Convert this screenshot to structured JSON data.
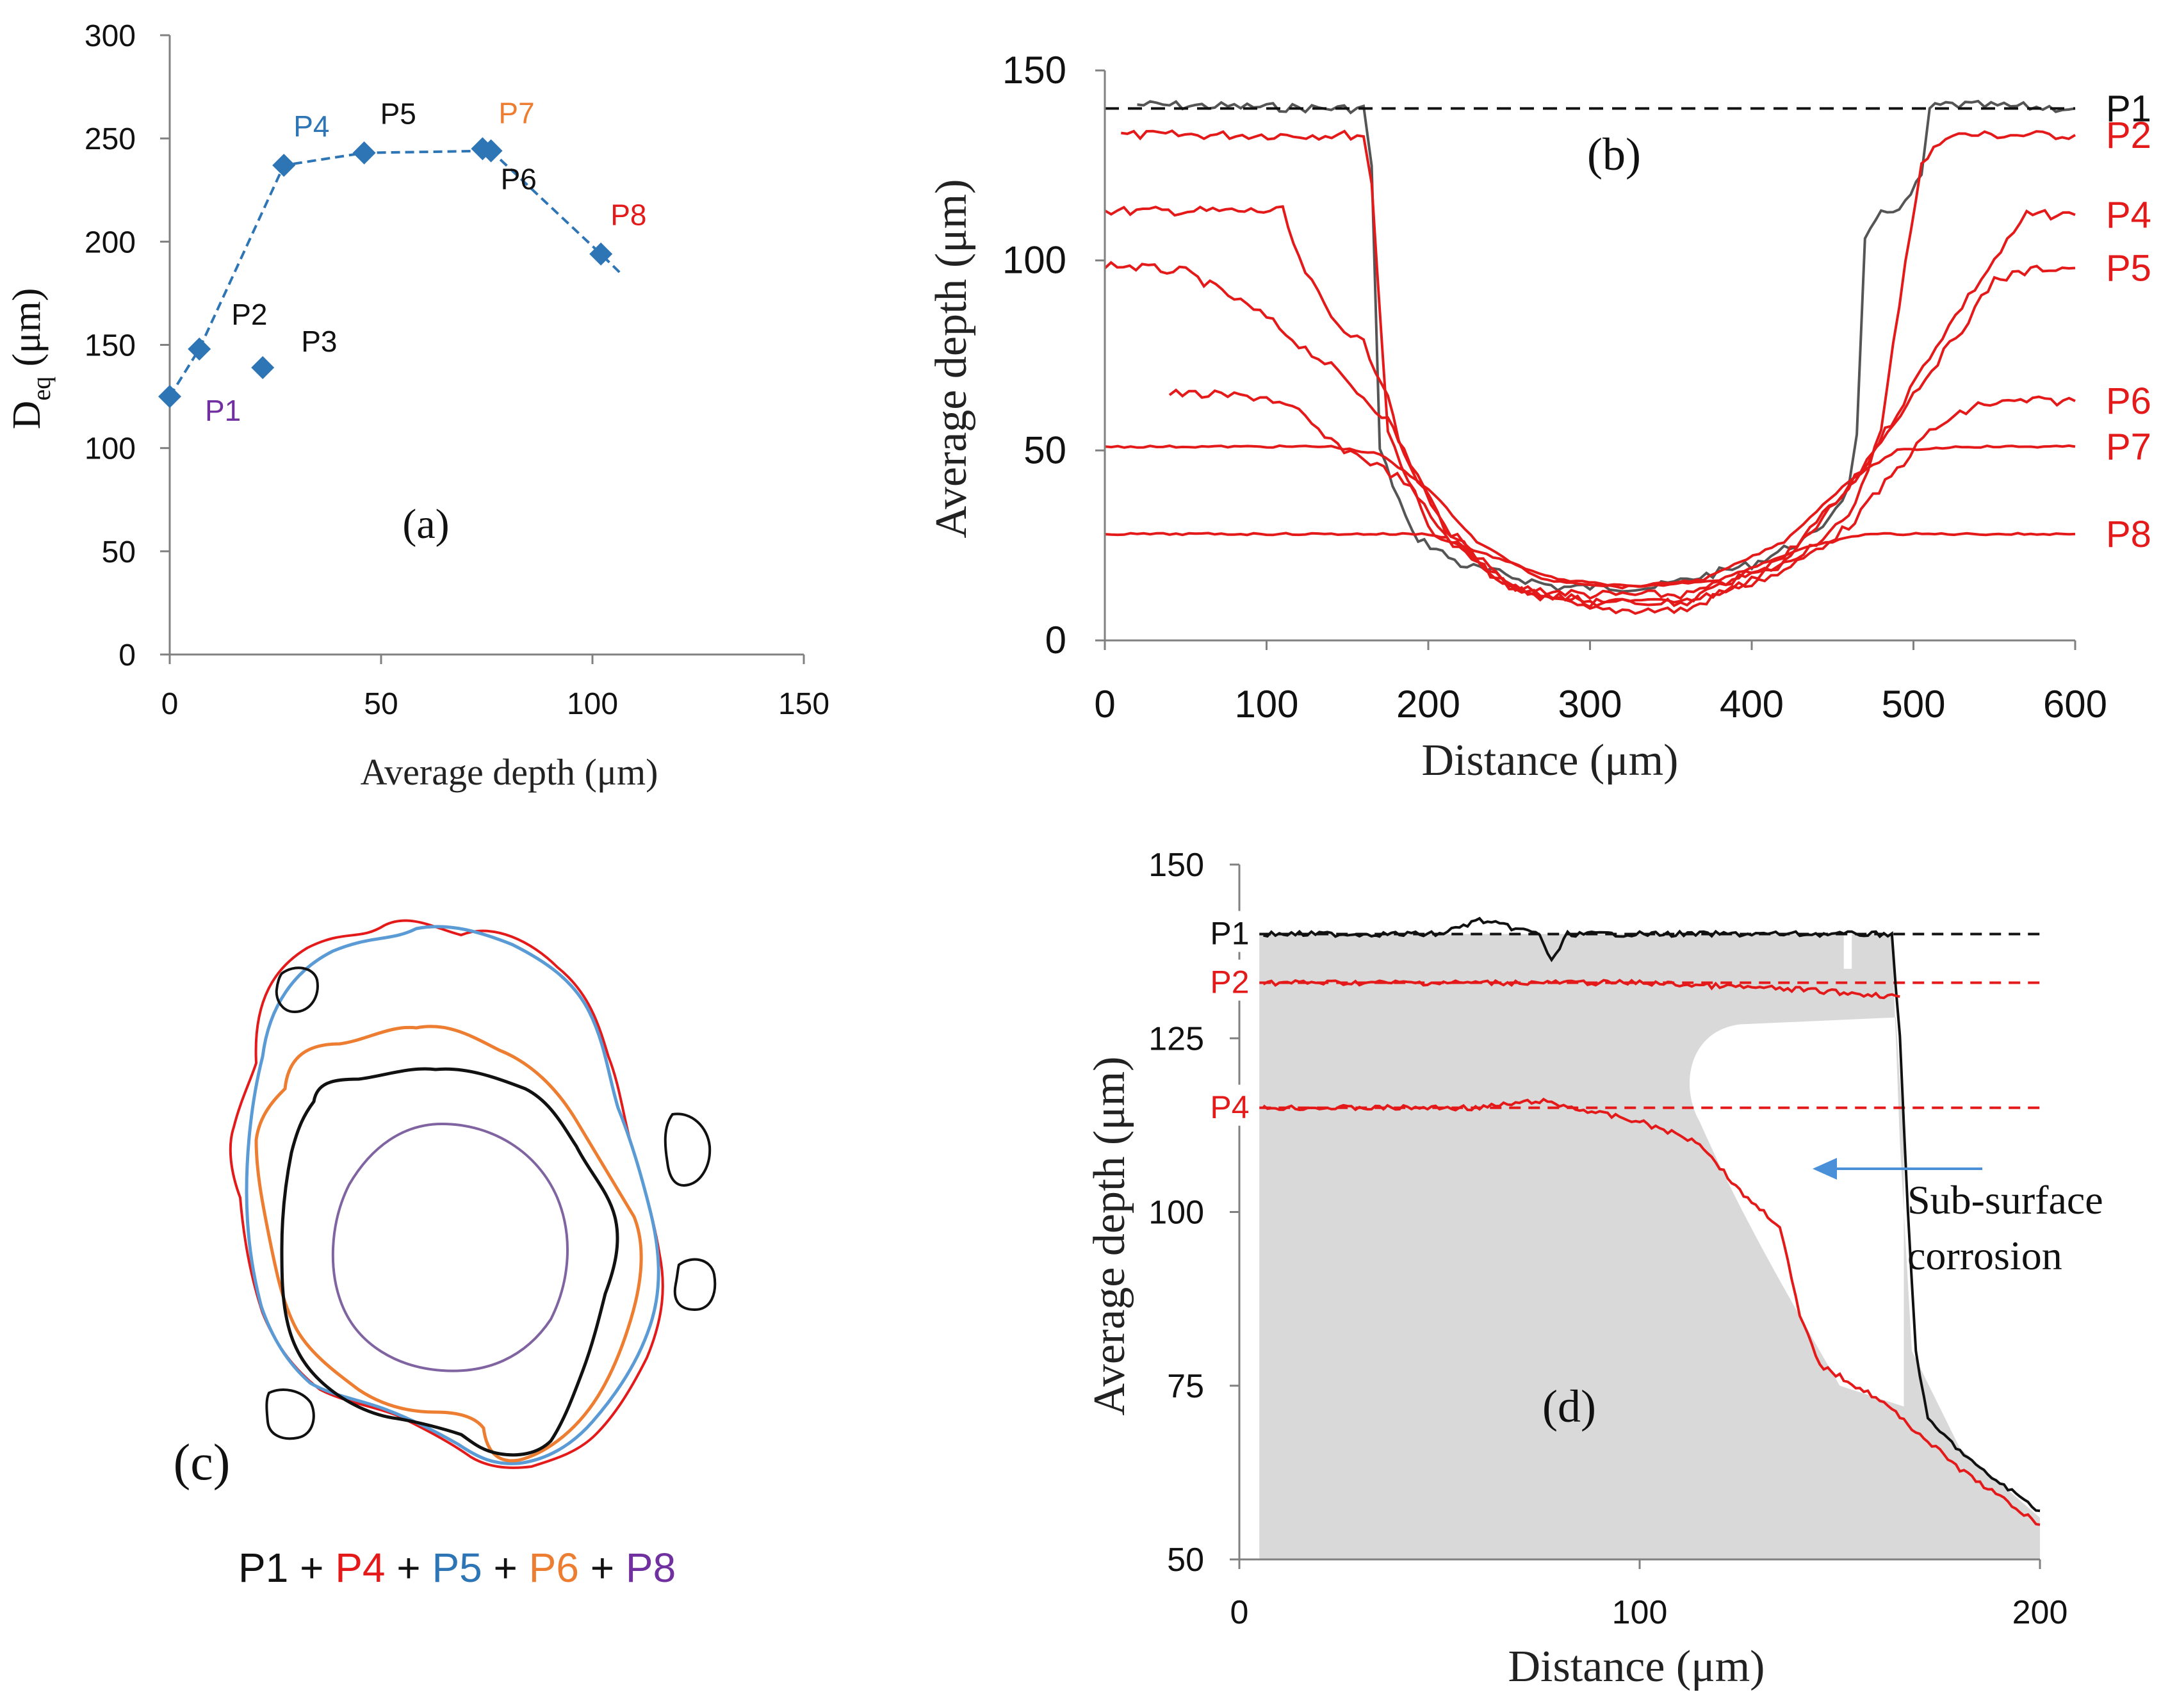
{
  "colors": {
    "blue": "#2e75b6",
    "black": "#111111",
    "red": "#e41a1a",
    "orange": "#ed7d31",
    "purple": "#7030a0",
    "grey_fill": "#d9d9d9",
    "axis": "#808080",
    "arrow": "#4a90d9"
  },
  "chart_data": [
    {
      "id": "a",
      "type": "scatter",
      "panel_label": "(a)",
      "title": "",
      "xlabel": "Average depth (μm)",
      "ylabel_main": "D",
      "ylabel_sub": "eq",
      "ylabel_rest": " (μm)",
      "xlim": [
        0,
        150
      ],
      "ylim": [
        0,
        300
      ],
      "xticks": [
        0,
        50,
        100,
        150
      ],
      "yticks": [
        0,
        50,
        100,
        150,
        200,
        250,
        300
      ],
      "points": [
        {
          "label": "P1",
          "x": 0,
          "y": 125,
          "label_color": "purple"
        },
        {
          "label": "P2",
          "x": 7,
          "y": 148,
          "label_color": "black"
        },
        {
          "label": "P3",
          "x": 22,
          "y": 139,
          "label_color": "black"
        },
        {
          "label": "P4",
          "x": 27,
          "y": 237,
          "label_color": "blue"
        },
        {
          "label": "P5",
          "x": 46,
          "y": 243,
          "label_color": "black"
        },
        {
          "label": "P6",
          "x": 76,
          "y": 244,
          "label_color": "black"
        },
        {
          "label": "P7",
          "x": 74,
          "y": 245,
          "label_color": "orange"
        },
        {
          "label": "P8",
          "x": 102,
          "y": 194,
          "label_color": "red"
        }
      ],
      "trend_line": [
        [
          0,
          125
        ],
        [
          7,
          148
        ],
        [
          27,
          237
        ],
        [
          46,
          243
        ],
        [
          76,
          244
        ],
        [
          102,
          194
        ],
        [
          107,
          184
        ]
      ]
    },
    {
      "id": "b",
      "type": "line",
      "panel_label": "(b)",
      "title": "",
      "xlabel": "Distance (μm)",
      "ylabel": "Average depth (μm)",
      "xlim": [
        0,
        600
      ],
      "ylim": [
        0,
        150
      ],
      "xticks": [
        0,
        100,
        200,
        300,
        400,
        500,
        600
      ],
      "yticks": [
        0,
        50,
        100,
        150
      ],
      "reference_line_y": 140,
      "series": [
        {
          "name": "P1",
          "color": "grey",
          "points": [
            [
              20,
              141
            ],
            [
              140,
              140
            ],
            [
              160,
              140
            ],
            [
              165,
              125
            ],
            [
              170,
              50
            ],
            [
              190,
              28
            ],
            [
              220,
              20
            ],
            [
              280,
              14
            ],
            [
              340,
              14
            ],
            [
              400,
              20
            ],
            [
              440,
              28
            ],
            [
              460,
              40
            ],
            [
              465,
              55
            ],
            [
              470,
              105
            ],
            [
              480,
              112
            ],
            [
              495,
              115
            ],
            [
              505,
              122
            ],
            [
              510,
              140
            ],
            [
              520,
              141
            ],
            [
              600,
              140
            ]
          ]
        },
        {
          "name": "P2",
          "color": "red",
          "points": [
            [
              10,
              133
            ],
            [
              160,
              133
            ],
            [
              165,
              120
            ],
            [
              175,
              55
            ],
            [
              200,
              30
            ],
            [
              250,
              14
            ],
            [
              300,
              12
            ],
            [
              360,
              12
            ],
            [
              420,
              20
            ],
            [
              460,
              32
            ],
            [
              480,
              55
            ],
            [
              495,
              100
            ],
            [
              505,
              125
            ],
            [
              520,
              133
            ],
            [
              600,
              133
            ]
          ]
        },
        {
          "name": "P4",
          "color": "red",
          "points": [
            [
              0,
              113
            ],
            [
              110,
              113
            ],
            [
              120,
              100
            ],
            [
              140,
              85
            ],
            [
              160,
              78
            ],
            [
              175,
              65
            ],
            [
              185,
              48
            ],
            [
              210,
              30
            ],
            [
              250,
              14
            ],
            [
              300,
              8
            ],
            [
              360,
              8
            ],
            [
              420,
              20
            ],
            [
              460,
              40
            ],
            [
              490,
              60
            ],
            [
              510,
              75
            ],
            [
              530,
              88
            ],
            [
              550,
              100
            ],
            [
              570,
              112
            ],
            [
              600,
              112
            ]
          ]
        },
        {
          "name": "P5",
          "color": "red",
          "points": [
            [
              0,
              99
            ],
            [
              50,
              97
            ],
            [
              80,
              90
            ],
            [
              100,
              85
            ],
            [
              120,
              78
            ],
            [
              140,
              72
            ],
            [
              160,
              64
            ],
            [
              175,
              58
            ],
            [
              185,
              50
            ],
            [
              210,
              30
            ],
            [
              250,
              14
            ],
            [
              300,
              10
            ],
            [
              360,
              10
            ],
            [
              420,
              22
            ],
            [
              460,
              40
            ],
            [
              500,
              65
            ],
            [
              530,
              82
            ],
            [
              550,
              95
            ],
            [
              580,
              98
            ],
            [
              600,
              98
            ]
          ]
        },
        {
          "name": "P6",
          "color": "red",
          "points": [
            [
              40,
              65
            ],
            [
              100,
              64
            ],
            [
              120,
              60
            ],
            [
              140,
              52
            ],
            [
              160,
              48
            ],
            [
              185,
              42
            ],
            [
              210,
              28
            ],
            [
              250,
              14
            ],
            [
              300,
              10
            ],
            [
              360,
              10
            ],
            [
              420,
              18
            ],
            [
              460,
              30
            ],
            [
              490,
              45
            ],
            [
              510,
              55
            ],
            [
              540,
              62
            ],
            [
              570,
              63
            ],
            [
              600,
              63
            ]
          ]
        },
        {
          "name": "P7",
          "color": "red",
          "points": [
            [
              0,
              51
            ],
            [
              140,
              51
            ],
            [
              170,
              49
            ],
            [
              200,
              40
            ],
            [
              230,
              26
            ],
            [
              270,
              16
            ],
            [
              320,
              14
            ],
            [
              370,
              16
            ],
            [
              420,
              26
            ],
            [
              460,
              42
            ],
            [
              490,
              50
            ],
            [
              530,
              51
            ],
            [
              600,
              51
            ]
          ]
        },
        {
          "name": "P8",
          "color": "red",
          "points": [
            [
              0,
              28
            ],
            [
              200,
              28
            ],
            [
              240,
              22
            ],
            [
              280,
              16
            ],
            [
              330,
              14
            ],
            [
              380,
              16
            ],
            [
              430,
              24
            ],
            [
              470,
              28
            ],
            [
              600,
              28
            ]
          ]
        }
      ]
    },
    {
      "id": "c",
      "type": "diagram",
      "panel_label": "(c)",
      "legend": [
        {
          "label": "P1",
          "color": "black"
        },
        {
          "label": "P4",
          "color": "red"
        },
        {
          "label": "P5",
          "color": "blue"
        },
        {
          "label": "P6",
          "color": "orange"
        },
        {
          "label": "P8",
          "color": "purple"
        }
      ],
      "legend_separator": "+"
    },
    {
      "id": "d",
      "type": "line",
      "panel_label": "(d)",
      "title": "",
      "xlabel": "Distance (μm)",
      "ylabel": "Average depth (μm)",
      "xlim": [
        0,
        200
      ],
      "ylim": [
        50,
        150
      ],
      "xticks": [
        0,
        100,
        200
      ],
      "yticks": [
        50,
        75,
        100,
        125,
        150
      ],
      "annotation": [
        "Sub-surface",
        "corrosion"
      ],
      "reference_lines": [
        {
          "label": "P1",
          "y": 140,
          "color": "black"
        },
        {
          "label": "P2",
          "y": 133,
          "color": "red"
        },
        {
          "label": "P4",
          "y": 115,
          "color": "red"
        }
      ],
      "series": [
        {
          "name": "P1",
          "color": "black",
          "points": [
            [
              6,
              140
            ],
            [
              50,
              140
            ],
            [
              60,
              142
            ],
            [
              75,
              140
            ],
            [
              78,
              136
            ],
            [
              82,
              140
            ],
            [
              150,
              140
            ],
            [
              163,
              140
            ],
            [
              165,
              125
            ],
            [
              167,
              100
            ],
            [
              169,
              80
            ],
            [
              172,
              70
            ],
            [
              185,
              63
            ],
            [
              200,
              57
            ]
          ]
        },
        {
          "name": "P2",
          "color": "red",
          "points": [
            [
              6,
              133
            ],
            [
              100,
              133
            ],
            [
              140,
              132
            ],
            [
              165,
              131
            ]
          ]
        },
        {
          "name": "P4",
          "color": "red",
          "points": [
            [
              6,
              115
            ],
            [
              60,
              115
            ],
            [
              75,
              116
            ],
            [
              100,
              113
            ],
            [
              115,
              110
            ],
            [
              125,
              103
            ],
            [
              135,
              98
            ],
            [
              140,
              85
            ],
            [
              145,
              78
            ],
            [
              160,
              73
            ],
            [
              180,
              63
            ],
            [
              200,
              55
            ]
          ]
        }
      ]
    }
  ]
}
